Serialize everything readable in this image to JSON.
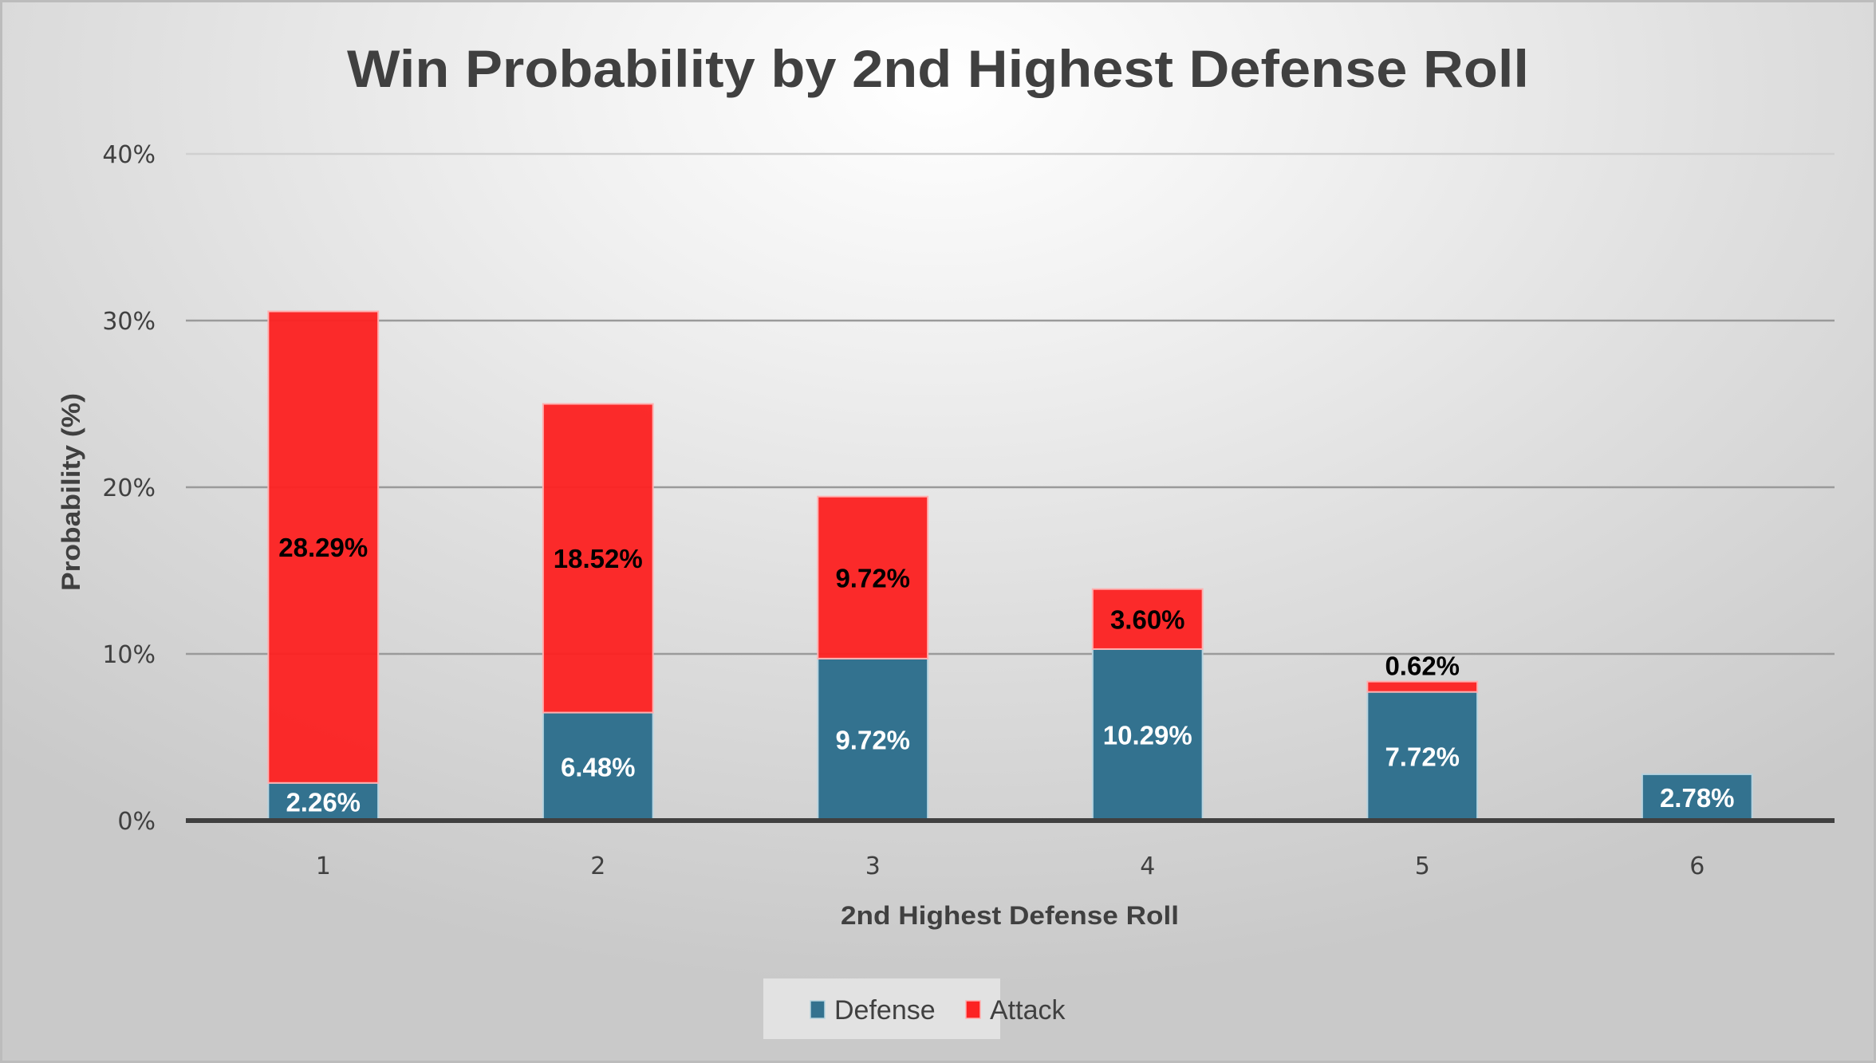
{
  "chart_data": {
    "type": "bar",
    "stacked": true,
    "title": "Win Probability by 2nd Highest Defense Roll",
    "xlabel": "2nd Highest Defense Roll",
    "ylabel": "Probability (%)",
    "ylim": [
      0,
      40
    ],
    "yticks": [
      0,
      10,
      20,
      30,
      40
    ],
    "ytick_labels": [
      "0%",
      "10%",
      "20%",
      "30%",
      "40%"
    ],
    "grid": true,
    "legend_position": "bottom",
    "categories": [
      "1",
      "2",
      "3",
      "4",
      "5",
      "6"
    ],
    "series": [
      {
        "name": "Defense",
        "color": "#33728F",
        "values": [
          2.26,
          6.48,
          9.72,
          10.29,
          7.72,
          2.78
        ],
        "labels": [
          "2.26%",
          "6.48%",
          "9.72%",
          "10.29%",
          "7.72%",
          "2.78%"
        ],
        "label_color": "#FFFFFF"
      },
      {
        "name": "Attack",
        "color": "#FC2222",
        "values": [
          28.29,
          18.52,
          9.72,
          3.6,
          0.62,
          0
        ],
        "labels": [
          "28.29%",
          "18.52%",
          "9.72%",
          "3.60%",
          "0.62%",
          ""
        ],
        "label_color": "#000000"
      }
    ]
  }
}
